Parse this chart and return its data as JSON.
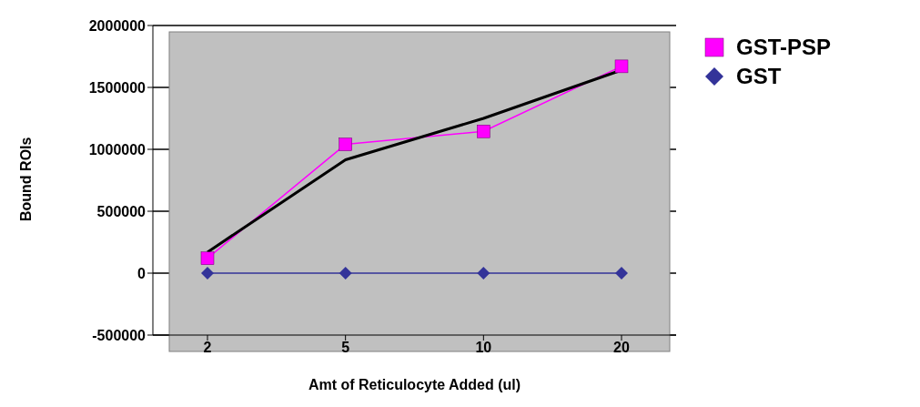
{
  "chart_data": {
    "type": "line",
    "xlabel": "Amt of Reticulocyte Added (ul)",
    "ylabel": "Bound ROIs",
    "categories": [
      "2",
      "5",
      "10",
      "20"
    ],
    "series": [
      {
        "name": "GST-PSP",
        "color": "#ff00ff",
        "marker": "square",
        "values": [
          120000,
          1040000,
          1145000,
          1670000
        ]
      },
      {
        "name": "GST",
        "color": "#333399",
        "marker": "diamond",
        "values": [
          0,
          0,
          0,
          0
        ]
      },
      {
        "color": "#000000",
        "marker": "none",
        "values": [
          170000,
          915000,
          1250000,
          1640000
        ]
      }
    ],
    "ylim": [
      -500000,
      2000000
    ],
    "yticks": [
      -500000,
      0,
      500000,
      1000000,
      1500000,
      2000000
    ],
    "grid": "y",
    "legend": "top right"
  }
}
